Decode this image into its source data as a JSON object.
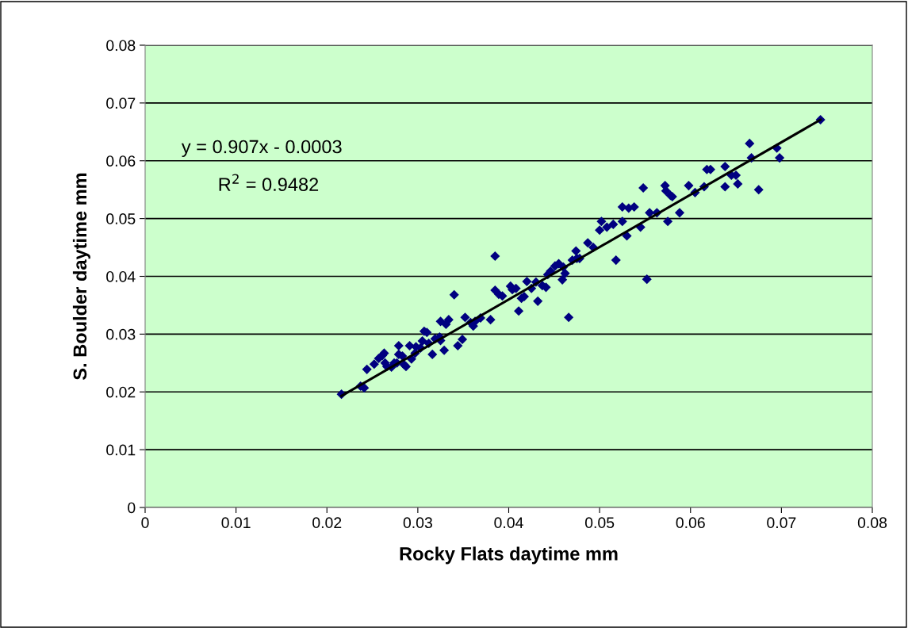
{
  "chart_data": {
    "type": "scatter",
    "xlabel": "Rocky Flats daytime mm",
    "ylabel": "S. Boulder daytime mm",
    "xlim": [
      0,
      0.08
    ],
    "xticks": [
      0,
      0.01,
      0.02,
      0.03,
      0.04,
      0.05,
      0.06,
      0.07,
      0.08
    ],
    "ylim": [
      0,
      0.08
    ],
    "yticks": [
      0,
      0.01,
      0.02,
      0.03,
      0.04,
      0.05,
      0.06,
      0.07,
      0.08
    ],
    "grid": "y",
    "annotations": [
      "y = 0.907x - 0.0003",
      "R$^{2}$ = 0.9482"
    ],
    "series": [
      {
        "color": "#000080",
        "marker": "diamond",
        "x": [
          0.0216,
          0.0237,
          0.0241,
          0.0244,
          0.0252,
          0.0257,
          0.0261,
          0.0263,
          0.0264,
          0.0266,
          0.0271,
          0.0274,
          0.0277,
          0.0279,
          0.0279,
          0.0283,
          0.0285,
          0.0287,
          0.0291,
          0.0293,
          0.0297,
          0.0298,
          0.0303,
          0.0305,
          0.0307,
          0.031,
          0.0312,
          0.0316,
          0.0319,
          0.0324,
          0.0325,
          0.0331,
          0.0325,
          0.0329,
          0.0334,
          0.034,
          0.0344,
          0.0349,
          0.0352,
          0.0358,
          0.0361,
          0.0385,
          0.0363,
          0.0369,
          0.038,
          0.0385,
          0.0389,
          0.0393,
          0.0402,
          0.0404,
          0.0408,
          0.0411,
          0.0414,
          0.0417,
          0.042,
          0.0425,
          0.043,
          0.0432,
          0.0437,
          0.0441,
          0.0443,
          0.0446,
          0.0451,
          0.0455,
          0.0459,
          0.046,
          0.0462,
          0.0466,
          0.047,
          0.0474,
          0.0475,
          0.0478,
          0.0487,
          0.0493,
          0.05,
          0.0502,
          0.0508,
          0.0515,
          0.0518,
          0.0525,
          0.0525,
          0.053,
          0.0532,
          0.0538,
          0.0545,
          0.0548,
          0.0552,
          0.0555,
          0.0563,
          0.0572,
          0.0573,
          0.0575,
          0.0578,
          0.058,
          0.0588,
          0.0598,
          0.0605,
          0.0615,
          0.0618,
          0.0622,
          0.0638,
          0.0638,
          0.0645,
          0.065,
          0.0652,
          0.0665,
          0.0667,
          0.0675,
          0.0695,
          0.0698,
          0.0743
        ],
        "values": [
          0.0196,
          0.021,
          0.0207,
          0.0239,
          0.0248,
          0.0258,
          0.0263,
          0.0267,
          0.025,
          0.0244,
          0.0243,
          0.025,
          0.025,
          0.0265,
          0.028,
          0.0262,
          0.0247,
          0.0244,
          0.028,
          0.0257,
          0.0267,
          0.0278,
          0.0276,
          0.0288,
          0.0305,
          0.0303,
          0.0284,
          0.0265,
          0.0292,
          0.0295,
          0.0289,
          0.0317,
          0.0322,
          0.0272,
          0.0325,
          0.0368,
          0.028,
          0.0291,
          0.0329,
          0.032,
          0.0314,
          0.0435,
          0.0322,
          0.0328,
          0.0325,
          0.0376,
          0.0369,
          0.0366,
          0.0383,
          0.0377,
          0.0379,
          0.034,
          0.0362,
          0.0365,
          0.0391,
          0.0379,
          0.039,
          0.0357,
          0.0384,
          0.0381,
          0.0403,
          0.0409,
          0.0418,
          0.0422,
          0.0394,
          0.0416,
          0.0405,
          0.0329,
          0.0428,
          0.0444,
          0.0431,
          0.0431,
          0.0458,
          0.045,
          0.048,
          0.0495,
          0.0485,
          0.049,
          0.0428,
          0.052,
          0.0495,
          0.047,
          0.0518,
          0.052,
          0.0485,
          0.0553,
          0.0395,
          0.051,
          0.051,
          0.0557,
          0.0548,
          0.0495,
          0.054,
          0.0538,
          0.051,
          0.0557,
          0.0545,
          0.0555,
          0.0585,
          0.0585,
          0.059,
          0.0555,
          0.0575,
          0.0575,
          0.056,
          0.063,
          0.0605,
          0.055,
          0.0622,
          0.0605,
          0.0671
        ]
      },
      {
        "type": "line",
        "color": "#000000",
        "x": [
          0.0216,
          0.0743
        ],
        "values": [
          0.0193,
          0.0671
        ]
      }
    ]
  }
}
